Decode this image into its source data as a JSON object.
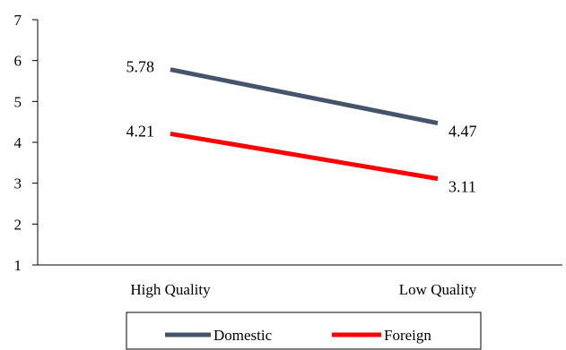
{
  "chart_data": {
    "type": "line",
    "categories": [
      "High Quality",
      "Low Quality"
    ],
    "series": [
      {
        "name": "Domestic",
        "values": [
          5.78,
          4.47
        ],
        "labels": [
          "5.78",
          "4.47"
        ],
        "color": "#44546A"
      },
      {
        "name": "Foreign",
        "values": [
          4.21,
          3.11
        ],
        "labels": [
          "4.21",
          "3.11"
        ],
        "color": "#FF0000"
      }
    ],
    "title": "",
    "xlabel": "",
    "ylabel": "",
    "ylim": [
      1,
      7
    ],
    "yticks": [
      "1",
      "2",
      "3",
      "4",
      "5",
      "6",
      "7"
    ],
    "grid": false,
    "legend_placement": "bottom"
  }
}
